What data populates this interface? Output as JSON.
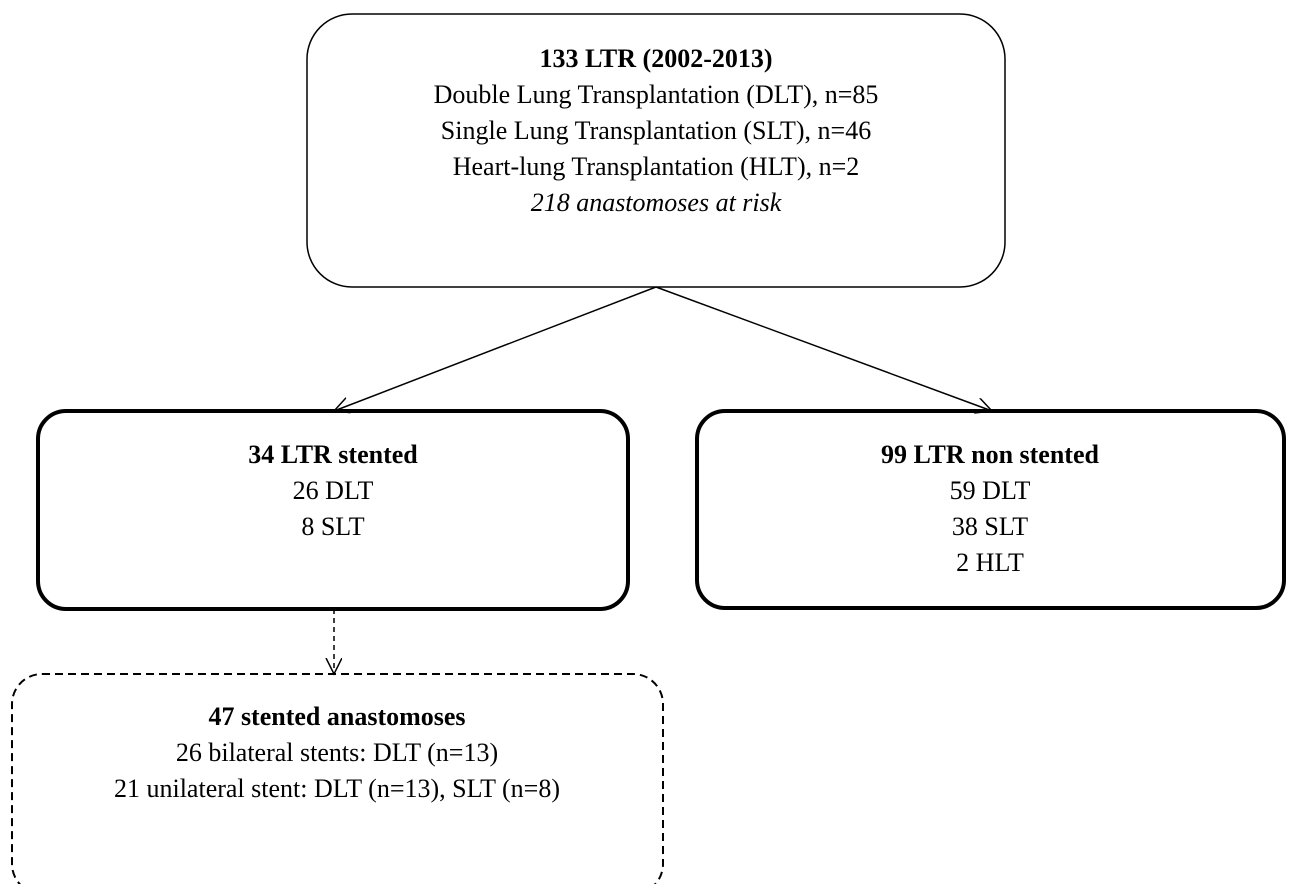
{
  "nodes": [
    {
      "title": "133 LTR (2002-2013)",
      "lines": [
        "Double Lung Transplantation (DLT), n=85",
        "Single Lung Transplantation (SLT), n=46",
        "Heart-lung Transplantation (HLT), n=2"
      ],
      "note": "218 anastomoses at risk"
    },
    {
      "title": "34 LTR stented",
      "lines": [
        "26 DLT",
        "8 SLT"
      ]
    },
    {
      "title": "99 LTR non stented",
      "lines": [
        "59 DLT",
        "38 SLT",
        "2 HLT"
      ]
    },
    {
      "title": "47 stented anastomoses",
      "lines": [
        "26 bilateral stents: DLT (n=13)",
        "21 unilateral stent: DLT (n=13), SLT (n=8)"
      ]
    }
  ]
}
